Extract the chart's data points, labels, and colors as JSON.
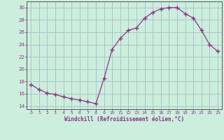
{
  "x": [
    0,
    1,
    2,
    3,
    4,
    5,
    6,
    7,
    8,
    9,
    10,
    11,
    12,
    13,
    14,
    15,
    16,
    17,
    18,
    19,
    20,
    21,
    22,
    23
  ],
  "y": [
    17.5,
    16.7,
    16.1,
    15.9,
    15.5,
    15.2,
    15.0,
    14.7,
    14.4,
    18.5,
    23.2,
    25.0,
    26.3,
    26.7,
    28.3,
    29.2,
    29.8,
    30.0,
    30.0,
    29.0,
    28.3,
    26.3,
    24.0,
    22.9
  ],
  "line_color": "#883388",
  "marker": "+",
  "marker_size": 4,
  "bg_color": "#cceedd",
  "grid_color": "#aabbcc",
  "xlabel": "Windchill (Refroidissement éolien,°C)",
  "xlabel_color": "#883388",
  "tick_color": "#883388",
  "ylim": [
    13.5,
    31
  ],
  "yticks": [
    14,
    16,
    18,
    20,
    22,
    24,
    26,
    28,
    30
  ],
  "xlim": [
    -0.5,
    23.5
  ],
  "xticks": [
    0,
    1,
    2,
    3,
    4,
    5,
    6,
    7,
    8,
    9,
    10,
    11,
    12,
    13,
    14,
    15,
    16,
    17,
    18,
    19,
    20,
    21,
    22,
    23
  ],
  "spine_color": "#888888",
  "axis_color": "#555555"
}
